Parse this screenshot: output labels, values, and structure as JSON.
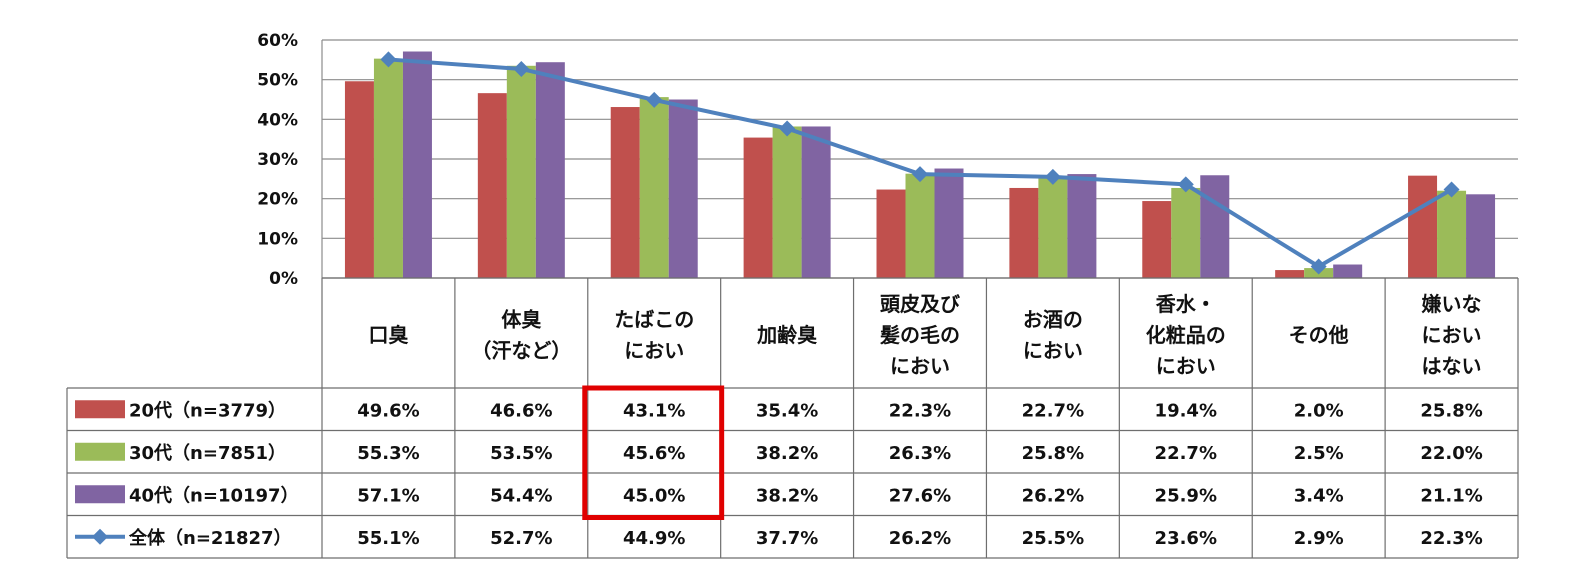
{
  "chart_data": {
    "type": "bar",
    "title": "",
    "xlabel": "",
    "ylabel": "",
    "ylim": [
      0,
      60
    ],
    "yticks": [
      "0%",
      "10%",
      "20%",
      "30%",
      "40%",
      "50%",
      "60%"
    ],
    "grid": true,
    "categories": [
      [
        "口臭"
      ],
      [
        "体臭",
        "（汗など）"
      ],
      [
        "たばこの",
        "におい"
      ],
      [
        "加齢臭"
      ],
      [
        "頭皮及び",
        "髪の毛の",
        "におい"
      ],
      [
        "お酒の",
        "におい"
      ],
      [
        "香水・",
        "化粧品の",
        "におい"
      ],
      [
        "その他"
      ],
      [
        "嫌いな",
        "におい",
        "はない"
      ]
    ],
    "series": [
      {
        "name": "20代（n=3779）",
        "kind": "bar",
        "color": "#C0504D",
        "values": [
          49.6,
          46.6,
          43.1,
          35.4,
          22.3,
          22.7,
          19.4,
          2.0,
          25.8
        ],
        "labels": [
          "49.6%",
          "46.6%",
          "43.1%",
          "35.4%",
          "22.3%",
          "22.7%",
          "19.4%",
          "2.0%",
          "25.8%"
        ]
      },
      {
        "name": "30代（n=7851）",
        "kind": "bar",
        "color": "#9BBB59",
        "values": [
          55.3,
          53.5,
          45.6,
          38.2,
          26.3,
          25.8,
          22.7,
          2.5,
          22.0
        ],
        "labels": [
          "55.3%",
          "53.5%",
          "45.6%",
          "38.2%",
          "26.3%",
          "25.8%",
          "22.7%",
          "2.5%",
          "22.0%"
        ]
      },
      {
        "name": "40代（n=10197）",
        "kind": "bar",
        "color": "#8064A2",
        "values": [
          57.1,
          54.4,
          45.0,
          38.2,
          27.6,
          26.2,
          25.9,
          3.4,
          21.1
        ],
        "labels": [
          "57.1%",
          "54.4%",
          "45.0%",
          "38.2%",
          "27.6%",
          "26.2%",
          "25.9%",
          "3.4%",
          "21.1%"
        ]
      },
      {
        "name": "全体（n=21827）",
        "kind": "line",
        "color": "#4F81BD",
        "values": [
          55.1,
          52.7,
          44.9,
          37.7,
          26.2,
          25.5,
          23.6,
          2.9,
          22.3
        ],
        "labels": [
          "55.1%",
          "52.7%",
          "44.9%",
          "37.7%",
          "26.2%",
          "25.5%",
          "23.6%",
          "2.9%",
          "22.3%"
        ]
      }
    ],
    "highlight": {
      "category_index": 2,
      "rows": [
        0,
        1,
        2
      ],
      "color": "#E00000"
    }
  }
}
